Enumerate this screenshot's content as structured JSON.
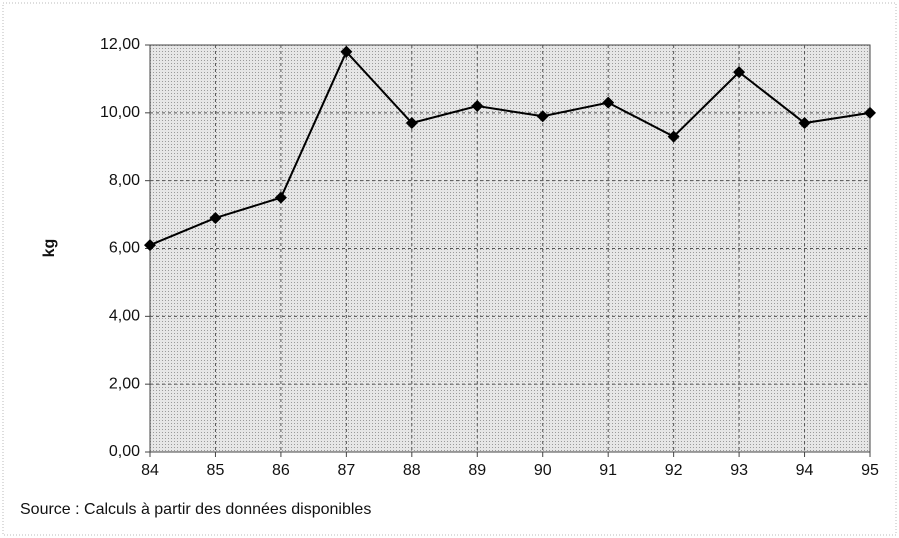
{
  "chart_data": {
    "type": "line",
    "y_label": "kg",
    "source": "Source : Calculs à partir des données disponibles",
    "categories": [
      "84",
      "85",
      "86",
      "87",
      "88",
      "89",
      "90",
      "91",
      "92",
      "93",
      "94",
      "95"
    ],
    "series": [
      {
        "name": "kg",
        "color": "#000000",
        "values": [
          6.1,
          6.9,
          7.5,
          11.8,
          9.7,
          10.2,
          9.9,
          10.3,
          9.3,
          11.2,
          9.7,
          10.0
        ]
      }
    ],
    "ylim": [
      0,
      12
    ],
    "yticks": [
      {
        "value": 0,
        "label": "0,00"
      },
      {
        "value": 2,
        "label": "2,00"
      },
      {
        "value": 4,
        "label": "4,00"
      },
      {
        "value": 6,
        "label": "6,00"
      },
      {
        "value": 8,
        "label": "8,00"
      },
      {
        "value": 10,
        "label": "10,00"
      },
      {
        "value": 12,
        "label": "12,00"
      }
    ],
    "grid": true
  }
}
